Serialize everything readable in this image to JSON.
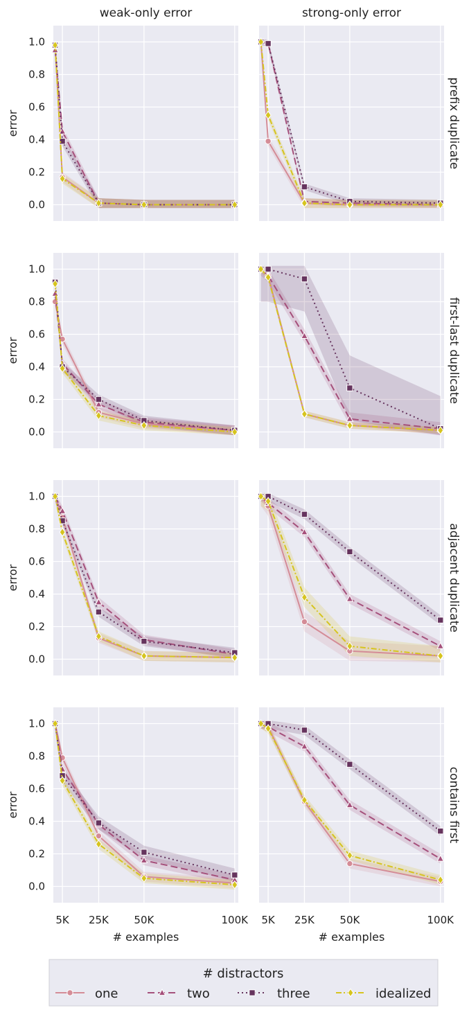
{
  "figure": {
    "col_titles": [
      "weak-only error",
      "strong-only error"
    ],
    "row_titles": [
      "prefix duplicate",
      "first-last duplicate",
      "adjacent duplicate",
      "contains first"
    ],
    "ylabel": "error",
    "xlabel": "# examples",
    "legend_title": "# distractors"
  },
  "chart_data": {
    "type": "line",
    "layout": "faceted grid 4 rows x 2 columns, shared axes",
    "x": [
      1000,
      5000,
      25000,
      50000,
      100000
    ],
    "xticks": [
      5000,
      25000,
      50000,
      100000
    ],
    "xtick_labels": [
      "5K",
      "25K",
      "50K",
      "100K"
    ],
    "xlim": [
      0,
      102000
    ],
    "ylim": [
      -0.1,
      1.1
    ],
    "yticks": [
      0.0,
      0.2,
      0.4,
      0.6,
      0.8,
      1.0
    ],
    "ytick_labels": [
      "0.0",
      "0.2",
      "0.4",
      "0.6",
      "0.8",
      "1.0"
    ],
    "grid": true,
    "legend_position": "bottom",
    "series_styles": [
      {
        "name": "one",
        "color": "#d48c97",
        "dash": "",
        "marker": "circle"
      },
      {
        "name": "two",
        "color": "#a5507b",
        "dash": "10,5",
        "marker": "triangle"
      },
      {
        "name": "three",
        "color": "#66345e",
        "dash": "2,4",
        "marker": "square"
      },
      {
        "name": "idealized",
        "color": "#d6c41f",
        "dash": "8,3,2,3",
        "marker": "diamond"
      }
    ],
    "panels": [
      {
        "row": "prefix duplicate",
        "col": "weak-only error",
        "series": [
          {
            "name": "one",
            "values": [
              0.98,
              0.17,
              0.01,
              0.0,
              0.0
            ],
            "band": 0.03
          },
          {
            "name": "two",
            "values": [
              0.95,
              0.45,
              0.01,
              0.0,
              0.0
            ],
            "band": 0.03
          },
          {
            "name": "three",
            "values": [
              0.98,
              0.39,
              0.01,
              0.0,
              0.0
            ],
            "band": 0.03
          },
          {
            "name": "idealized",
            "values": [
              0.98,
              0.16,
              0.01,
              0.0,
              0.0
            ],
            "band": 0.03
          }
        ]
      },
      {
        "row": "prefix duplicate",
        "col": "strong-only error",
        "series": [
          {
            "name": "one",
            "values": [
              1.0,
              0.39,
              0.01,
              0.0,
              0.0
            ],
            "band": 0.03
          },
          {
            "name": "two",
            "values": [
              1.0,
              0.99,
              0.02,
              0.01,
              0.0
            ],
            "band": 0.02
          },
          {
            "name": "three",
            "values": [
              1.0,
              0.99,
              0.11,
              0.02,
              0.01
            ],
            "band": 0.02
          },
          {
            "name": "idealized",
            "values": [
              1.0,
              0.55,
              0.01,
              0.0,
              0.0
            ],
            "band": 0.03
          }
        ]
      },
      {
        "row": "first-last duplicate",
        "col": "weak-only error",
        "series": [
          {
            "name": "one",
            "values": [
              0.8,
              0.57,
              0.12,
              0.05,
              0.01
            ],
            "band": 0.03
          },
          {
            "name": "two",
            "values": [
              0.85,
              0.42,
              0.17,
              0.06,
              0.01
            ],
            "band": 0.03
          },
          {
            "name": "three",
            "values": [
              0.92,
              0.4,
              0.2,
              0.07,
              0.01
            ],
            "band": 0.03
          },
          {
            "name": "idealized",
            "values": [
              0.91,
              0.39,
              0.1,
              0.04,
              0.0
            ],
            "band": 0.03
          }
        ]
      },
      {
        "row": "first-last duplicate",
        "col": "strong-only error",
        "series": [
          {
            "name": "one",
            "values": [
              1.0,
              0.96,
              0.11,
              0.04,
              0.01
            ],
            "band": 0.02
          },
          {
            "name": "two",
            "values": [
              1.0,
              0.96,
              0.59,
              0.08,
              0.02
            ],
            "band": 0.04
          },
          {
            "name": "three",
            "values": [
              1.0,
              1.0,
              0.94,
              0.27,
              0.02
            ],
            "band": 0.2
          },
          {
            "name": "idealized",
            "values": [
              1.0,
              0.95,
              0.11,
              0.04,
              0.01
            ],
            "band": 0.02
          }
        ]
      },
      {
        "row": "adjacent duplicate",
        "col": "weak-only error",
        "series": [
          {
            "name": "one",
            "values": [
              1.0,
              0.87,
              0.13,
              0.02,
              0.01
            ],
            "band": 0.03
          },
          {
            "name": "two",
            "values": [
              1.0,
              0.91,
              0.35,
              0.12,
              0.03
            ],
            "band": 0.03
          },
          {
            "name": "three",
            "values": [
              1.0,
              0.85,
              0.29,
              0.11,
              0.04
            ],
            "band": 0.03
          },
          {
            "name": "idealized",
            "values": [
              1.0,
              0.78,
              0.14,
              0.02,
              0.01
            ],
            "band": 0.03
          }
        ]
      },
      {
        "row": "adjacent duplicate",
        "col": "strong-only error",
        "series": [
          {
            "name": "one",
            "values": [
              1.0,
              0.94,
              0.23,
              0.05,
              0.02
            ],
            "band": 0.06
          },
          {
            "name": "two",
            "values": [
              1.0,
              0.96,
              0.78,
              0.37,
              0.08
            ],
            "band": 0.03
          },
          {
            "name": "three",
            "values": [
              1.0,
              1.0,
              0.89,
              0.66,
              0.24
            ],
            "band": 0.03
          },
          {
            "name": "idealized",
            "values": [
              1.0,
              0.97,
              0.38,
              0.08,
              0.02
            ],
            "band": 0.06
          }
        ]
      },
      {
        "row": "contains first",
        "col": "weak-only error",
        "series": [
          {
            "name": "one",
            "values": [
              1.0,
              0.79,
              0.31,
              0.06,
              0.02
            ],
            "band": 0.03
          },
          {
            "name": "two",
            "values": [
              1.0,
              0.72,
              0.38,
              0.16,
              0.04
            ],
            "band": 0.03
          },
          {
            "name": "three",
            "values": [
              1.0,
              0.68,
              0.39,
              0.21,
              0.07
            ],
            "band": 0.04
          },
          {
            "name": "idealized",
            "values": [
              1.0,
              0.65,
              0.26,
              0.05,
              0.01
            ],
            "band": 0.03
          }
        ]
      },
      {
        "row": "contains first",
        "col": "strong-only error",
        "series": [
          {
            "name": "one",
            "values": [
              1.0,
              0.98,
              0.52,
              0.14,
              0.03
            ],
            "band": 0.03
          },
          {
            "name": "two",
            "values": [
              1.0,
              0.98,
              0.86,
              0.5,
              0.17
            ],
            "band": 0.03
          },
          {
            "name": "three",
            "values": [
              1.0,
              1.0,
              0.96,
              0.75,
              0.34
            ],
            "band": 0.03
          },
          {
            "name": "idealized",
            "values": [
              1.0,
              0.97,
              0.53,
              0.19,
              0.04
            ],
            "band": 0.03
          }
        ]
      }
    ]
  }
}
